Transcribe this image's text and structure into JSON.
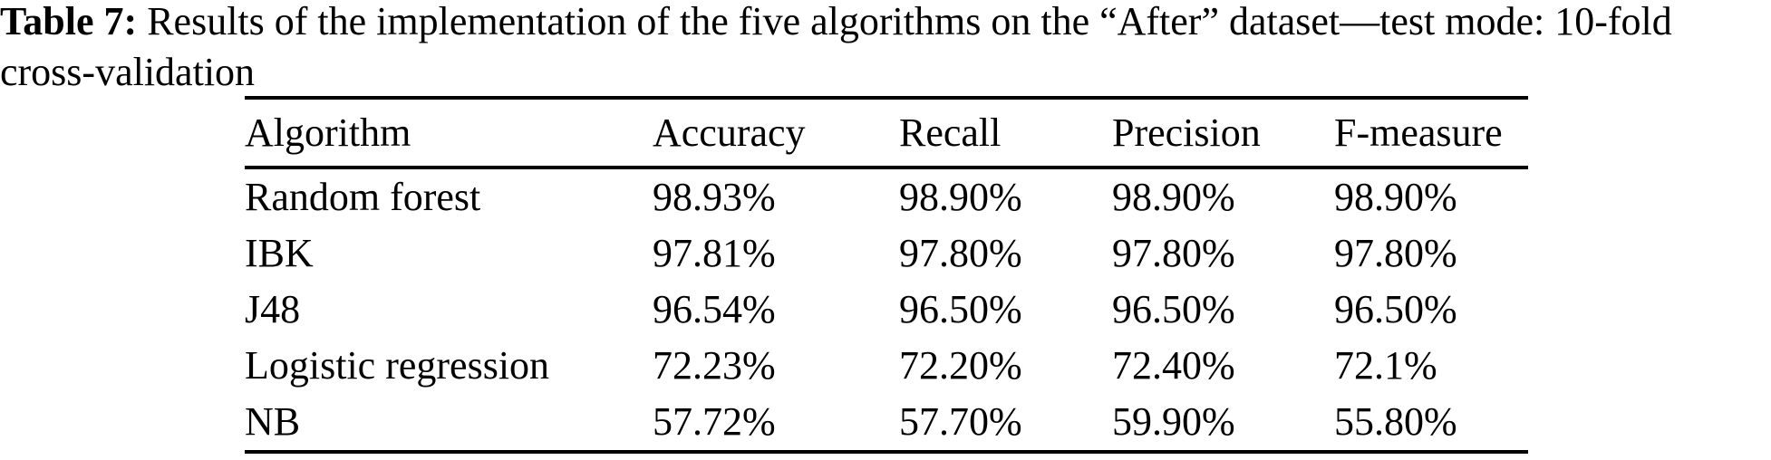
{
  "caption": {
    "label": "Table 7:",
    "text": "Results of the implementation of the five algorithms on the “After” dataset—test mode: 10-fold cross-validation"
  },
  "table": {
    "columns": [
      "Algorithm",
      "Accuracy",
      "Recall",
      "Precision",
      "F-measure"
    ],
    "rows": [
      {
        "algorithm": "Random forest",
        "values": [
          "98.93%",
          "98.90%",
          "98.90%",
          "98.90%"
        ]
      },
      {
        "algorithm": "IBK",
        "values": [
          "97.81%",
          "97.80%",
          "97.80%",
          "97.80%"
        ]
      },
      {
        "algorithm": "J48",
        "values": [
          "96.54%",
          "96.50%",
          "96.50%",
          "96.50%"
        ]
      },
      {
        "algorithm": "Logistic regression",
        "values": [
          "72.23%",
          "72.20%",
          "72.40%",
          "72.1%"
        ]
      },
      {
        "algorithm": "NB",
        "values": [
          "57.72%",
          "57.70%",
          "59.90%",
          "55.80%"
        ]
      }
    ]
  },
  "colors": {
    "text": "#000000",
    "background": "#ffffff",
    "rule": "#000000"
  }
}
